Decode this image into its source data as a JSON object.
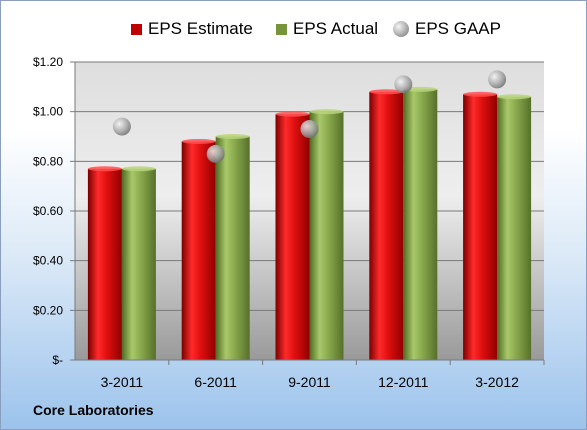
{
  "company": "Core Laboratories",
  "legend": [
    {
      "name": "EPS Estimate",
      "color": "#c00000",
      "shape": "square"
    },
    {
      "name": "EPS Actual",
      "color": "#77933c",
      "shape": "square"
    },
    {
      "name": "EPS GAAP",
      "color": "#a6a6a6",
      "shape": "circle"
    }
  ],
  "chart_data": {
    "type": "bar",
    "categories": [
      "3-2011",
      "6-2011",
      "9-2011",
      "12-2011",
      "3-2012"
    ],
    "series": [
      {
        "name": "EPS Estimate",
        "type": "bar",
        "values": [
          0.77,
          0.88,
          0.99,
          1.08,
          1.07
        ],
        "color": "#c00000"
      },
      {
        "name": "EPS Actual",
        "type": "bar",
        "values": [
          0.77,
          0.9,
          1.0,
          1.09,
          1.06
        ],
        "color": "#77933c"
      },
      {
        "name": "EPS GAAP",
        "type": "scatter",
        "values": [
          0.94,
          0.83,
          0.93,
          1.11,
          1.13
        ],
        "color": "#a6a6a6"
      }
    ],
    "y_ticks": [
      0,
      0.2,
      0.4,
      0.6,
      0.8,
      1.0,
      1.2
    ],
    "y_tick_labels": [
      "$-",
      "$0.20",
      "$0.40",
      "$0.60",
      "$0.80",
      "$1.00",
      "$1.20"
    ],
    "ylim": [
      0,
      1.2
    ],
    "grid": true,
    "legend_position": "top"
  }
}
